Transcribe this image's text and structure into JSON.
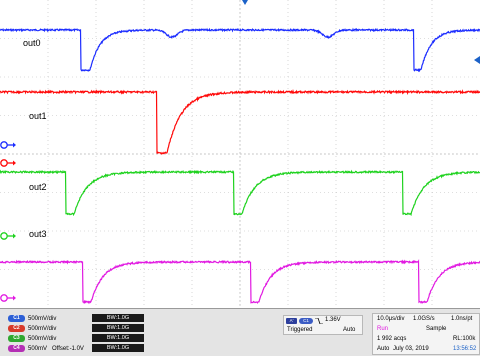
{
  "colors": {
    "ch1": "#1c2dff",
    "ch2": "#ff0a0a",
    "ch3": "#1fd21f",
    "ch4": "#e11ae1",
    "grid": "#bdbdbd",
    "badge_ch1": "#2c5fd6",
    "badge_ch2": "#d83a2a",
    "badge_ch3": "#2fa82f",
    "badge_ch4": "#b42fb4",
    "run": "#e11ae1",
    "time": "#1c62c8"
  },
  "traces": [
    {
      "label": "out0",
      "channel_color": "ch1"
    },
    {
      "label": "out1",
      "channel_color": "ch2"
    },
    {
      "label": "out2",
      "channel_color": "ch3"
    },
    {
      "label": "out3",
      "channel_color": "ch4"
    }
  ],
  "channels": [
    {
      "badge": "C1",
      "scale": "500mV/div",
      "offset": "",
      "bw": "BW:1.0G",
      "color": "badge_ch1"
    },
    {
      "badge": "C2",
      "scale": "500mV/div",
      "offset": "",
      "bw": "BW:1.0G",
      "color": "badge_ch2"
    },
    {
      "badge": "C3",
      "scale": "500mV/div",
      "offset": "",
      "bw": "BW:1.0G",
      "color": "badge_ch3"
    },
    {
      "badge": "C4",
      "scale": "500mV",
      "offset": "Offset:-1.0V",
      "bw": "BW:1.0G",
      "color": "badge_ch4"
    }
  ],
  "trigger": {
    "badge": "A'",
    "channel": "C1",
    "slope_icon": "falling-edge-icon",
    "level": "1.36V",
    "state": "Triggered",
    "mode": "Auto"
  },
  "acquisition": {
    "timebase": "10.0μs/div",
    "sample_rate": "1.0GS/s",
    "interval": "1.0ns/pt",
    "run_state": "Run",
    "mode": "Sample",
    "acqs": "1 992 acqs",
    "record_length": "RL:100k",
    "trigger_mode": "Auto",
    "date": "July 03, 2019",
    "time": "13:56:52"
  }
}
